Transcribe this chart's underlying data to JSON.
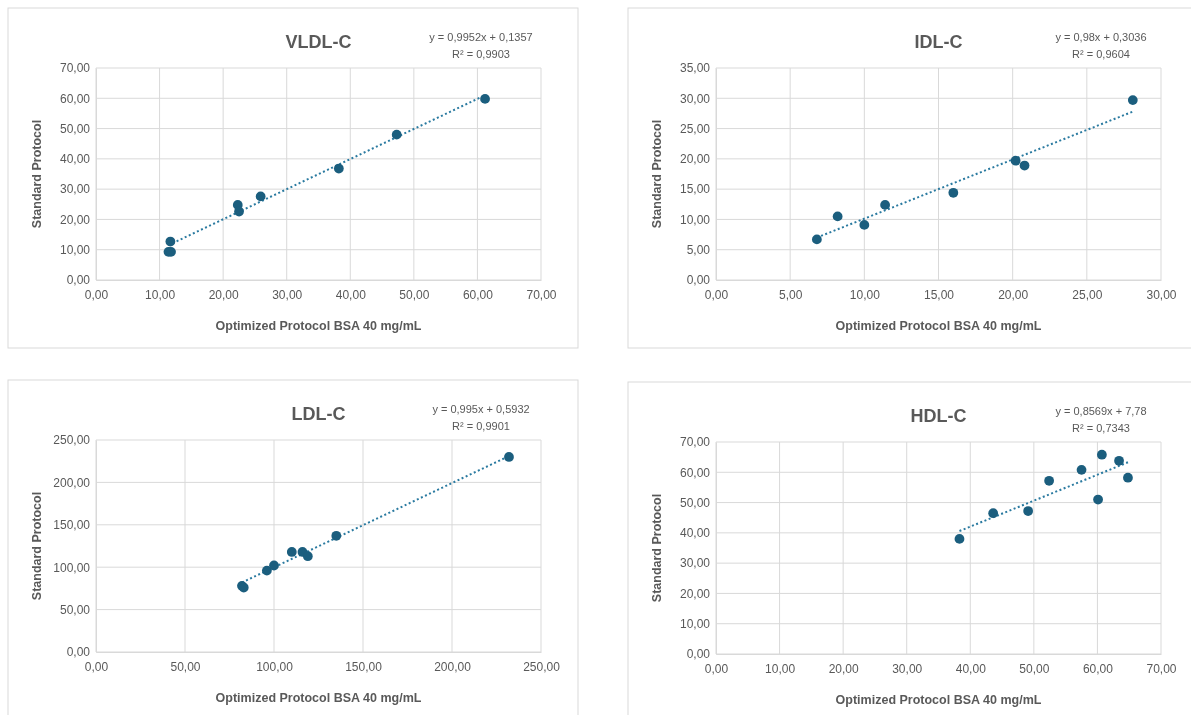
{
  "chart_data": [
    {
      "type": "scatter",
      "title": "VLDL-C",
      "xlabel": "Optimized Protocol BSA 40 mg/mL",
      "ylabel": "Standard Protocol",
      "annotations": [
        "y = 0,9952x + 0,1357",
        "R² = 0,9903"
      ],
      "grid": true,
      "marker": "circle",
      "xlim": [
        0,
        70
      ],
      "ylim": [
        0,
        70
      ],
      "xticks": [
        {
          "value": 0,
          "label": "0,00"
        },
        {
          "value": 10,
          "label": "10,00"
        },
        {
          "value": 20,
          "label": "20,00"
        },
        {
          "value": 30,
          "label": "30,00"
        },
        {
          "value": 40,
          "label": "40,00"
        },
        {
          "value": 50,
          "label": "50,00"
        },
        {
          "value": 60,
          "label": "60,00"
        },
        {
          "value": 70,
          "label": "70,00"
        }
      ],
      "yticks": [
        {
          "value": 0,
          "label": "0,00"
        },
        {
          "value": 10,
          "label": "10,00"
        },
        {
          "value": 20,
          "label": "20,00"
        },
        {
          "value": 30,
          "label": "30,00"
        },
        {
          "value": 40,
          "label": "40,00"
        },
        {
          "value": 50,
          "label": "50,00"
        },
        {
          "value": 60,
          "label": "60,00"
        },
        {
          "value": 70,
          "label": "70,00"
        }
      ],
      "series": [
        {
          "type": "line",
          "marker": "none",
          "line_style": "dotted",
          "color": "#2a7aa0",
          "x": [
            11.4,
            61.2
          ],
          "values": [
            11.5,
            61.0
          ]
        },
        {
          "color": "#1b5e7e",
          "x": [
            11.7,
            11.4,
            11.8,
            22.3,
            22.5,
            25.9,
            38.2,
            47.3,
            61.2
          ],
          "values": [
            12.7,
            9.3,
            9.3,
            24.8,
            22.6,
            27.6,
            36.8,
            48.0,
            59.8
          ]
        }
      ]
    },
    {
      "type": "scatter",
      "title": "IDL-C",
      "xlabel": "Optimized Protocol BSA 40 mg/mL",
      "ylabel": "Standard Protocol",
      "annotations": [
        "y = 0,98x + 0,3036",
        "R² = 0,9604"
      ],
      "grid": true,
      "marker": "circle",
      "xlim": [
        0,
        30
      ],
      "ylim": [
        0,
        35
      ],
      "xticks": [
        {
          "value": 0,
          "label": "0,00"
        },
        {
          "value": 5,
          "label": "5,00"
        },
        {
          "value": 10,
          "label": "10,00"
        },
        {
          "value": 15,
          "label": "15,00"
        },
        {
          "value": 20,
          "label": "20,00"
        },
        {
          "value": 25,
          "label": "25,00"
        },
        {
          "value": 30,
          "label": "30,00"
        }
      ],
      "yticks": [
        {
          "value": 0,
          "label": "0,00"
        },
        {
          "value": 5,
          "label": "5,00"
        },
        {
          "value": 10,
          "label": "10,00"
        },
        {
          "value": 15,
          "label": "15,00"
        },
        {
          "value": 20,
          "label": "20,00"
        },
        {
          "value": 25,
          "label": "25,00"
        },
        {
          "value": 30,
          "label": "30,00"
        },
        {
          "value": 35,
          "label": "35,00"
        }
      ],
      "series": [
        {
          "type": "line",
          "marker": "none",
          "line_style": "dotted",
          "color": "#2a7aa0",
          "x": [
            6.8,
            28.1
          ],
          "values": [
            7.0,
            27.8
          ]
        },
        {
          "color": "#1b5e7e",
          "x": [
            6.8,
            8.2,
            10.0,
            11.4,
            16.0,
            20.2,
            20.8,
            28.1
          ],
          "values": [
            6.7,
            10.5,
            9.1,
            12.4,
            14.4,
            19.7,
            18.9,
            29.7
          ]
        }
      ]
    },
    {
      "type": "scatter",
      "title": "LDL-C",
      "xlabel": "Optimized Protocol BSA 40 mg/mL",
      "ylabel": "Standard Protocol",
      "annotations": [
        "y = 0,995x + 0,5932",
        "R² = 0,9901"
      ],
      "grid": true,
      "marker": "circle",
      "xlim": [
        0,
        250
      ],
      "ylim": [
        0,
        250
      ],
      "xticks": [
        {
          "value": 0,
          "label": "0,00"
        },
        {
          "value": 50,
          "label": "50,00"
        },
        {
          "value": 100,
          "label": "100,00"
        },
        {
          "value": 150,
          "label": "150,00"
        },
        {
          "value": 200,
          "label": "200,00"
        },
        {
          "value": 250,
          "label": "250,00"
        }
      ],
      "yticks": [
        {
          "value": 0,
          "label": "0,00"
        },
        {
          "value": 50,
          "label": "50,00"
        },
        {
          "value": 100,
          "label": "100,00"
        },
        {
          "value": 150,
          "label": "150,00"
        },
        {
          "value": 200,
          "label": "200,00"
        },
        {
          "value": 250,
          "label": "250,00"
        }
      ],
      "series": [
        {
          "type": "line",
          "marker": "none",
          "line_style": "dotted",
          "color": "#2a7aa0",
          "x": [
            82,
            232
          ],
          "values": [
            82,
            231
          ]
        },
        {
          "color": "#1b5e7e",
          "x": [
            82,
            83,
            96,
            100,
            110,
            116,
            119,
            135,
            232
          ],
          "values": [
            78,
            76,
            96,
            102,
            118,
            118,
            113,
            137,
            230
          ]
        }
      ]
    },
    {
      "type": "scatter",
      "title": "HDL-C",
      "xlabel": "Optimized Protocol BSA 40 mg/mL",
      "ylabel": "Standard Protocol",
      "annotations": [
        "y = 0,8569x + 7,78",
        "R² = 0,7343"
      ],
      "grid": true,
      "marker": "circle",
      "xlim": [
        0,
        70
      ],
      "ylim": [
        0,
        70
      ],
      "xticks": [
        {
          "value": 0,
          "label": "0,00"
        },
        {
          "value": 10,
          "label": "10,00"
        },
        {
          "value": 20,
          "label": "20,00"
        },
        {
          "value": 30,
          "label": "30,00"
        },
        {
          "value": 40,
          "label": "40,00"
        },
        {
          "value": 50,
          "label": "50,00"
        },
        {
          "value": 60,
          "label": "60,00"
        },
        {
          "value": 70,
          "label": "70,00"
        }
      ],
      "yticks": [
        {
          "value": 0,
          "label": "0,00"
        },
        {
          "value": 10,
          "label": "10,00"
        },
        {
          "value": 20,
          "label": "20,00"
        },
        {
          "value": 30,
          "label": "30,00"
        },
        {
          "value": 40,
          "label": "40,00"
        },
        {
          "value": 50,
          "label": "50,00"
        },
        {
          "value": 60,
          "label": "60,00"
        },
        {
          "value": 70,
          "label": "70,00"
        }
      ],
      "series": [
        {
          "type": "line",
          "marker": "none",
          "line_style": "dotted",
          "color": "#2a7aa0",
          "x": [
            38.3,
            64.8
          ],
          "values": [
            40.6,
            63.3
          ]
        },
        {
          "color": "#1b5e7e",
          "x": [
            38.3,
            43.6,
            49.1,
            52.4,
            57.5,
            60.1,
            60.7,
            63.4,
            64.8
          ],
          "values": [
            38.0,
            46.5,
            47.2,
            57.2,
            60.8,
            51.0,
            65.8,
            63.8,
            58.2
          ]
        }
      ]
    }
  ]
}
